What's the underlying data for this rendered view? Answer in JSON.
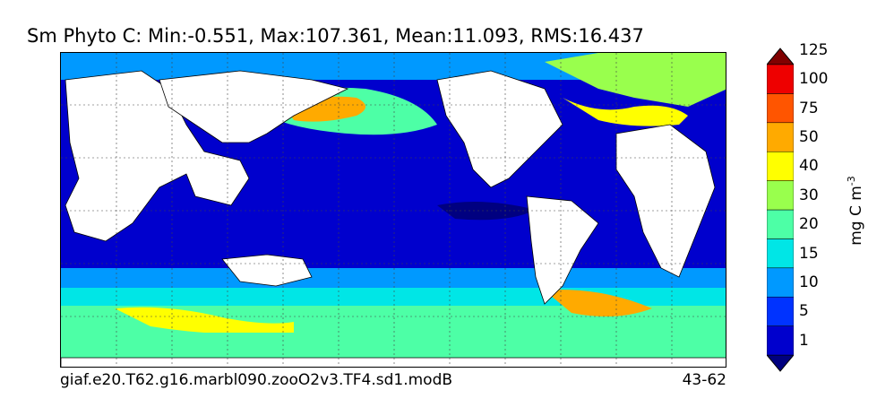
{
  "title": "Sm Phyto C: Min:-0.551, Max:107.361, Mean:11.093, RMS:16.437",
  "case_name": "giaf.e20.T62.g16.marbl090.zooO2v3.TF4.sd1.modB",
  "years": "43-62",
  "colorbar": {
    "units_base": "mg C m",
    "units_exp": "-3",
    "levels": [
      "1",
      "5",
      "10",
      "15",
      "20",
      "30",
      "40",
      "50",
      "75",
      "100",
      "125"
    ],
    "colors": [
      "#000080",
      "#0000cd",
      "#0033ff",
      "#0099ff",
      "#00e6e6",
      "#4dffa6",
      "#99ff4d",
      "#ffff00",
      "#ffaa00",
      "#ff5500",
      "#ee0000",
      "#800000"
    ]
  }
}
